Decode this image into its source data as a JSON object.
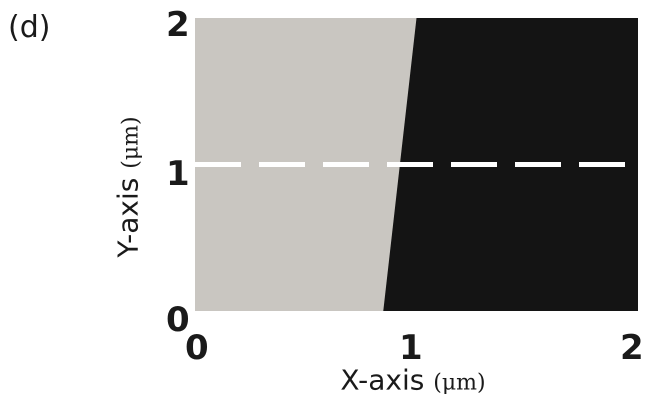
{
  "panel_label": "(d)",
  "chart_data": {
    "type": "heatmap",
    "title": "",
    "xlabel": "X-axis",
    "xunit": "(μm)",
    "ylabel": "Y-axis",
    "yunit": "(μm)",
    "xlim": [
      0,
      2
    ],
    "ylim": [
      0,
      2
    ],
    "xticks": [
      "0",
      "1",
      "2"
    ],
    "yticks": [
      "0",
      "1",
      "2"
    ],
    "regions": [
      {
        "name": "light",
        "color": "#c9c6c1",
        "boundary_bottom_x": 0.85,
        "boundary_top_x": 1.0
      },
      {
        "name": "dark",
        "color": "#141414"
      }
    ],
    "dashed_line": {
      "y": 1.0,
      "x_range": [
        0,
        2
      ],
      "color": "#ffffff"
    },
    "grid": false,
    "legend": "none"
  }
}
